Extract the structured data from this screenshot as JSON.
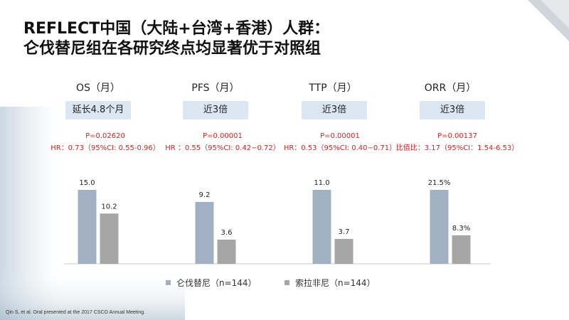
{
  "title": {
    "line1": "REFLECT中国（大陆+台湾+香港）人群：",
    "line2": "仑伐替尼组在各研究终点均显著优于对照组"
  },
  "groups": [
    {
      "label": "OS（月）",
      "effect": "延长4.8个月",
      "p": "P=0.02620",
      "hr": "HR：0.73（95%CI: 0.55-0.96）"
    },
    {
      "label": "PFS（月）",
      "effect": "近3倍",
      "p": "P=0.00001",
      "hr": "HR ：0.55（95%CI: 0.42−0.72）"
    },
    {
      "label": "TTP（月）",
      "effect": "近3倍",
      "p": "P=0.00001",
      "hr": "HR：0.53（95%CI: 0.40−0.71）"
    },
    {
      "label": "ORR（月）",
      "effect": "近3倍",
      "p": "P=0.00137",
      "hr": "比值比：3.17（95%CI：1.54-6.53）"
    }
  ],
  "chart_data": {
    "type": "bar",
    "categories": [
      "OS（月）",
      "PFS（月）",
      "TTP（月）",
      "ORR（月）"
    ],
    "series": [
      {
        "name": "仑伐替尼（n=144）",
        "color": "#a2b0c4",
        "values": [
          15.0,
          9.2,
          11.0,
          21.5
        ],
        "labels": [
          "15.0",
          "9.2",
          "11.0",
          "21.5%"
        ]
      },
      {
        "name": "索拉非尼（n=144）",
        "color": "#a6a6a6",
        "values": [
          10.2,
          3.6,
          3.7,
          8.3
        ],
        "labels": [
          "10.2",
          "3.6",
          "3.7",
          "8.3%"
        ]
      }
    ],
    "legend": "bottom",
    "grid": false
  },
  "footnote": "Qin S, et al. Oral presented at the 2017 CSCO Annual Meeting."
}
